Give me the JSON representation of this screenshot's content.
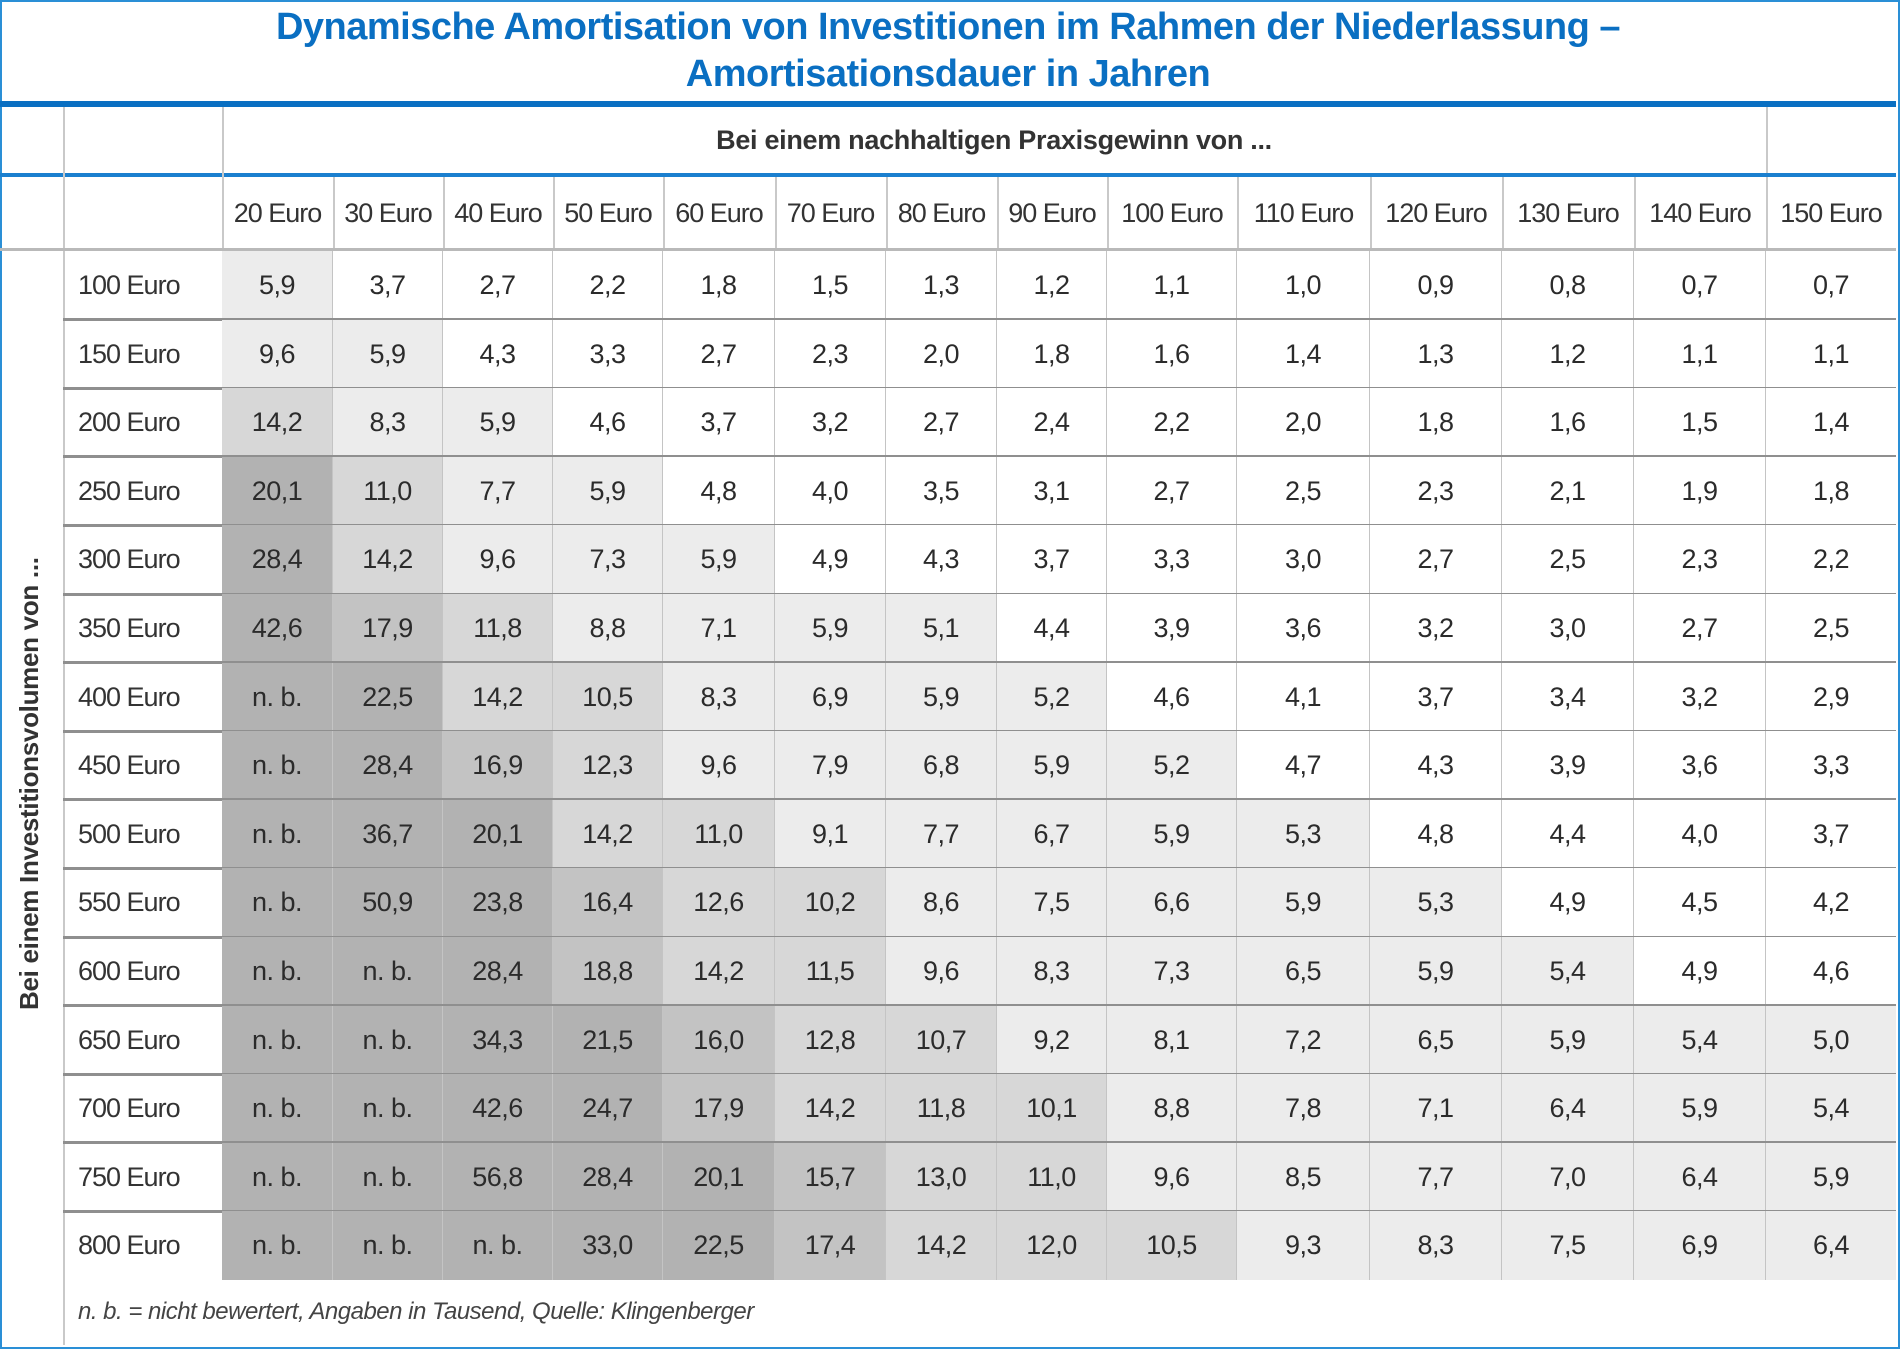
{
  "title": {
    "line1": "Dynamische Amortisation von Investitionen im Rahmen der Niederlassung –",
    "line2": "Amortisationsdauer in Jahren"
  },
  "column_group_label": "Bei einem nachhaltigen Praxisgewinn von ...",
  "row_group_label": "Bei einem Investitionsvolumen von ...",
  "columns": [
    "20 Euro",
    "30 Euro",
    "40 Euro",
    "50 Euro",
    "60 Euro",
    "70 Euro",
    "80 Euro",
    "90 Euro",
    "100 Euro",
    "110 Euro",
    "120 Euro",
    "130 Euro",
    "140 Euro",
    "150 Euro"
  ],
  "rows": [
    {
      "label": "100 Euro",
      "values": [
        "5,9",
        "3,7",
        "2,7",
        "2,2",
        "1,8",
        "1,5",
        "1,3",
        "1,2",
        "1,1",
        "1,0",
        "0,9",
        "0,8",
        "0,7",
        "0,7"
      ]
    },
    {
      "label": "150 Euro",
      "values": [
        "9,6",
        "5,9",
        "4,3",
        "3,3",
        "2,7",
        "2,3",
        "2,0",
        "1,8",
        "1,6",
        "1,4",
        "1,3",
        "1,2",
        "1,1",
        "1,1"
      ]
    },
    {
      "label": "200 Euro",
      "values": [
        "14,2",
        "8,3",
        "5,9",
        "4,6",
        "3,7",
        "3,2",
        "2,7",
        "2,4",
        "2,2",
        "2,0",
        "1,8",
        "1,6",
        "1,5",
        "1,4"
      ]
    },
    {
      "label": "250 Euro",
      "values": [
        "20,1",
        "11,0",
        "7,7",
        "5,9",
        "4,8",
        "4,0",
        "3,5",
        "3,1",
        "2,7",
        "2,5",
        "2,3",
        "2,1",
        "1,9",
        "1,8"
      ]
    },
    {
      "label": "300 Euro",
      "values": [
        "28,4",
        "14,2",
        "9,6",
        "7,3",
        "5,9",
        "4,9",
        "4,3",
        "3,7",
        "3,3",
        "3,0",
        "2,7",
        "2,5",
        "2,3",
        "2,2"
      ]
    },
    {
      "label": "350 Euro",
      "values": [
        "42,6",
        "17,9",
        "11,8",
        "8,8",
        "7,1",
        "5,9",
        "5,1",
        "4,4",
        "3,9",
        "3,6",
        "3,2",
        "3,0",
        "2,7",
        "2,5"
      ]
    },
    {
      "label": "400 Euro",
      "values": [
        "n. b.",
        "22,5",
        "14,2",
        "10,5",
        "8,3",
        "6,9",
        "5,9",
        "5,2",
        "4,6",
        "4,1",
        "3,7",
        "3,4",
        "3,2",
        "2,9"
      ]
    },
    {
      "label": "450 Euro",
      "values": [
        "n. b.",
        "28,4",
        "16,9",
        "12,3",
        "9,6",
        "7,9",
        "6,8",
        "5,9",
        "5,2",
        "4,7",
        "4,3",
        "3,9",
        "3,6",
        "3,3"
      ]
    },
    {
      "label": "500 Euro",
      "values": [
        "n. b.",
        "36,7",
        "20,1",
        "14,2",
        "11,0",
        "9,1",
        "7,7",
        "6,7",
        "5,9",
        "5,3",
        "4,8",
        "4,4",
        "4,0",
        "3,7"
      ]
    },
    {
      "label": "550 Euro",
      "values": [
        "n. b.",
        "50,9",
        "23,8",
        "16,4",
        "12,6",
        "10,2",
        "8,6",
        "7,5",
        "6,6",
        "5,9",
        "5,3",
        "4,9",
        "4,5",
        "4,2"
      ]
    },
    {
      "label": "600 Euro",
      "values": [
        "n. b.",
        "n. b.",
        "28,4",
        "18,8",
        "14,2",
        "11,5",
        "9,6",
        "8,3",
        "7,3",
        "6,5",
        "5,9",
        "5,4",
        "4,9",
        "4,6"
      ]
    },
    {
      "label": "650 Euro",
      "values": [
        "n. b.",
        "n. b.",
        "34,3",
        "21,5",
        "16,0",
        "12,8",
        "10,7",
        "9,2",
        "8,1",
        "7,2",
        "6,5",
        "5,9",
        "5,4",
        "5,0"
      ]
    },
    {
      "label": "700 Euro",
      "values": [
        "n. b.",
        "n. b.",
        "42,6",
        "24,7",
        "17,9",
        "14,2",
        "11,8",
        "10,1",
        "8,8",
        "7,8",
        "7,1",
        "6,4",
        "5,9",
        "5,4"
      ]
    },
    {
      "label": "750 Euro",
      "values": [
        "n. b.",
        "n. b.",
        "56,8",
        "28,4",
        "20,1",
        "15,7",
        "13,0",
        "11,0",
        "9,6",
        "8,5",
        "7,7",
        "7,0",
        "6,4",
        "5,9"
      ]
    },
    {
      "label": "800 Euro",
      "values": [
        "n. b.",
        "n. b.",
        "n. b.",
        "33,0",
        "22,5",
        "17,4",
        "14,2",
        "12,0",
        "10,5",
        "9,3",
        "8,3",
        "7,5",
        "6,9",
        "6,4"
      ]
    }
  ],
  "footnote": "n. b. = nicht bewertert, Angaben in Tausend, Quelle: Klingenberger",
  "colors": {
    "accent": "#0a6fc2",
    "frame": "#2a8fd6",
    "shade_tiers": [
      "#ffffff",
      "#ececec",
      "#d7d7d7",
      "#c3c3c3",
      "#b2b2b2"
    ]
  }
}
